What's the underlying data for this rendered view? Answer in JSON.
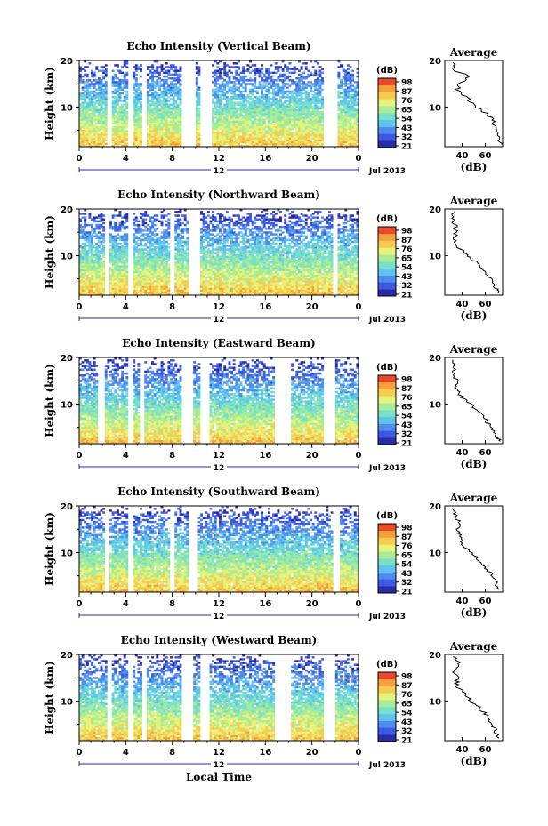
{
  "figure": {
    "xlabel": "Local Time",
    "avg_xlabel": "(dB)",
    "avg_title": "Average",
    "ylabel": "Height (km)",
    "date_label": "Jul 2013",
    "colorbar_unit": "(dB)",
    "colorbar_ticks": [
      "98",
      "87",
      "76",
      "65",
      "54",
      "43",
      "32",
      "21"
    ],
    "x_ticks": [
      "0",
      "4",
      "8",
      "12",
      "16",
      "20",
      "0"
    ],
    "sub_tick": "12"
  },
  "chart_data": [
    {
      "type": "heatmap",
      "title": "Echo Intensity (Vertical Beam)",
      "xlabel": "Local Time",
      "ylabel": "Height (km)",
      "xlim": [
        0,
        24
      ],
      "ylim": [
        1.5,
        20
      ],
      "y_ticks": [
        "20",
        "10"
      ],
      "colorbar": {
        "label": "(dB)",
        "range": [
          21,
          98
        ]
      },
      "gaps_hours": [
        [
          2.4,
          2.8
        ],
        [
          4.2,
          4.6
        ],
        [
          5.4,
          5.8
        ],
        [
          8.8,
          9.9
        ],
        [
          10.4,
          11.3
        ],
        [
          21.0,
          22.2
        ]
      ],
      "average": {
        "title": "Average",
        "xlabel": "(dB)",
        "x_ticks": [
          "40",
          "60"
        ],
        "xlim": [
          25,
          75
        ],
        "height": [
          19.5,
          18,
          16.5,
          15,
          13.5,
          12,
          10.5,
          9,
          7.5,
          6,
          4.5,
          3,
          2
        ],
        "value": [
          34,
          33,
          46,
          37,
          36,
          44,
          50,
          58,
          66,
          68,
          70,
          72,
          74
        ]
      }
    },
    {
      "type": "heatmap",
      "title": "Echo Intensity (Northward Beam)",
      "xlabel": "Local Time",
      "ylabel": "Height (km)",
      "xlim": [
        0,
        24
      ],
      "ylim": [
        1.5,
        20
      ],
      "y_ticks": [
        "20",
        "10"
      ],
      "colorbar": {
        "label": "(dB)",
        "range": [
          21,
          98
        ]
      },
      "gaps_hours": [
        [
          2.2,
          2.6
        ],
        [
          4.3,
          4.6
        ],
        [
          7.8,
          8.2
        ],
        [
          9.4,
          10.3
        ],
        [
          21.8,
          22.2
        ]
      ],
      "average": {
        "title": "Average",
        "xlabel": "(dB)",
        "x_ticks": [
          "40",
          "60"
        ],
        "xlim": [
          25,
          75
        ],
        "height": [
          19.5,
          18,
          16.5,
          15,
          13.5,
          12,
          10.5,
          9,
          7.5,
          6,
          4.5,
          3,
          2
        ],
        "value": [
          32,
          31,
          34,
          35,
          33,
          36,
          42,
          50,
          57,
          62,
          66,
          69,
          71
        ]
      }
    },
    {
      "type": "heatmap",
      "title": "Echo Intensity (Eastward Beam)",
      "xlabel": "Local Time",
      "ylabel": "Height (km)",
      "xlim": [
        0,
        24
      ],
      "ylim": [
        1.5,
        20
      ],
      "y_ticks": [
        "20",
        "10"
      ],
      "colorbar": {
        "label": "(dB)",
        "range": [
          21,
          98
        ]
      },
      "gaps_hours": [
        [
          1.7,
          2.1
        ],
        [
          4.2,
          4.5
        ],
        [
          5.3,
          5.6
        ],
        [
          8.8,
          9.8
        ],
        [
          10.3,
          11.2
        ],
        [
          16.8,
          18.2
        ],
        [
          21.0,
          22.0
        ]
      ],
      "average": {
        "title": "Average",
        "xlabel": "(dB)",
        "x_ticks": [
          "40",
          "60"
        ],
        "xlim": [
          25,
          75
        ],
        "height": [
          19.5,
          18,
          16.5,
          15,
          13.5,
          12,
          10.5,
          9,
          7.5,
          6,
          4.5,
          3,
          2
        ],
        "value": [
          31,
          33,
          32,
          36,
          35,
          38,
          44,
          52,
          58,
          62,
          66,
          70,
          73
        ]
      }
    },
    {
      "type": "heatmap",
      "title": "Echo Intensity (Southward Beam)",
      "xlabel": "Local Time",
      "ylabel": "Height (km)",
      "xlim": [
        0,
        24
      ],
      "ylim": [
        1.5,
        20
      ],
      "y_ticks": [
        "20",
        "10"
      ],
      "colorbar": {
        "label": "(dB)",
        "range": [
          21,
          98
        ]
      },
      "gaps_hours": [
        [
          2.2,
          2.6
        ],
        [
          4.3,
          4.6
        ],
        [
          7.9,
          8.2
        ],
        [
          9.4,
          10.2
        ],
        [
          21.9,
          22.3
        ]
      ],
      "average": {
        "title": "Average",
        "xlabel": "(dB)",
        "x_ticks": [
          "40",
          "60"
        ],
        "xlim": [
          25,
          75
        ],
        "height": [
          19.5,
          18,
          16.5,
          15,
          13.5,
          12,
          10.5,
          9,
          7.5,
          6,
          4.5,
          3,
          2
        ],
        "value": [
          32,
          34,
          37,
          36,
          38,
          40,
          45,
          52,
          58,
          63,
          67,
          70,
          72
        ]
      }
    },
    {
      "type": "heatmap",
      "title": "Echo Intensity (Westward Beam)",
      "xlabel": "Local Time",
      "ylabel": "Height (km)",
      "xlim": [
        0,
        24
      ],
      "ylim": [
        1.5,
        20
      ],
      "y_ticks": [
        "20",
        "10"
      ],
      "colorbar": {
        "label": "(dB)",
        "range": [
          21,
          98
        ]
      },
      "gaps_hours": [
        [
          2.4,
          2.8
        ],
        [
          4.3,
          4.6
        ],
        [
          5.4,
          5.7
        ],
        [
          8.8,
          9.8
        ],
        [
          10.4,
          11.2
        ],
        [
          16.8,
          18.2
        ],
        [
          21.1,
          22.0
        ]
      ],
      "average": {
        "title": "Average",
        "xlabel": "(dB)",
        "x_ticks": [
          "40",
          "60"
        ],
        "xlim": [
          25,
          75
        ],
        "height": [
          19.5,
          18,
          16.5,
          15,
          13.5,
          12,
          10.5,
          9,
          7.5,
          6,
          4.5,
          3,
          2
        ],
        "value": [
          34,
          38,
          33,
          36,
          35,
          40,
          46,
          53,
          59,
          63,
          67,
          70,
          72
        ]
      }
    }
  ],
  "colors": {
    "scale": [
      "#2a2aa8",
      "#3c5ae6",
      "#4f8cf0",
      "#5cc4ee",
      "#78e0c8",
      "#a8ec96",
      "#e6f27a",
      "#f6cc4e",
      "#f5a03a",
      "#ee4a2a"
    ],
    "axis": "#000000",
    "background": "#ffffff"
  }
}
